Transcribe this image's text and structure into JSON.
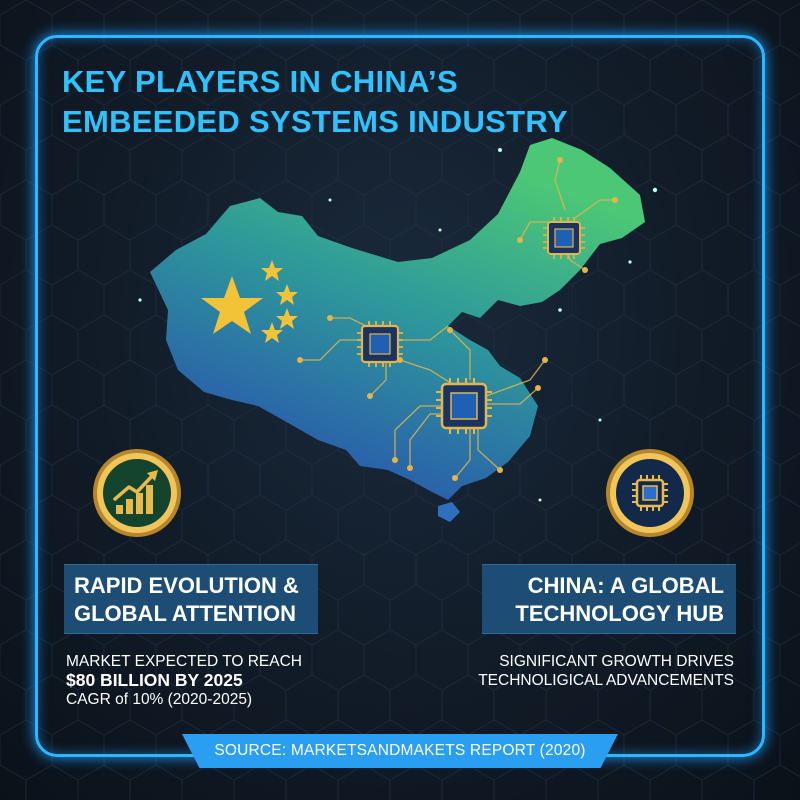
{
  "title": {
    "line1": "KEY PLAYERS IN CHINA’S",
    "line2": "EMBEEDED SYSTEMS INDUSTRY"
  },
  "left_panel": {
    "icon": "growth-chart-icon",
    "heading_line1": "RAPID EVOLUTION &",
    "heading_line2": "GLOBAL ATTENTION",
    "detail_line1": "MARKET EXPECTED TO REACH",
    "detail_line2": "$80 BILLION BY 2025",
    "detail_line3": "CAGR of 10% (2020-2025)"
  },
  "right_panel": {
    "icon": "microchip-icon",
    "heading_line1": "CHINA: A GLOBAL",
    "heading_line2": "TECHNOLOGY HUB",
    "detail_line1": "SIGNIFICANT GROWTH DRIVES",
    "detail_line2": "TECHNOLIGICAL ADVANCEMENTS"
  },
  "source": "SOURCE: MARKETSANDMAKETS REPORT (2020)",
  "colors": {
    "accent": "#2ec2ff",
    "frame": "#2bb8ff",
    "gold": "#d8a93c",
    "banner": "#1d4d74",
    "source_bar": "#2a9ef0",
    "map_green": "#45c97a",
    "map_blue": "#2a63b8"
  }
}
